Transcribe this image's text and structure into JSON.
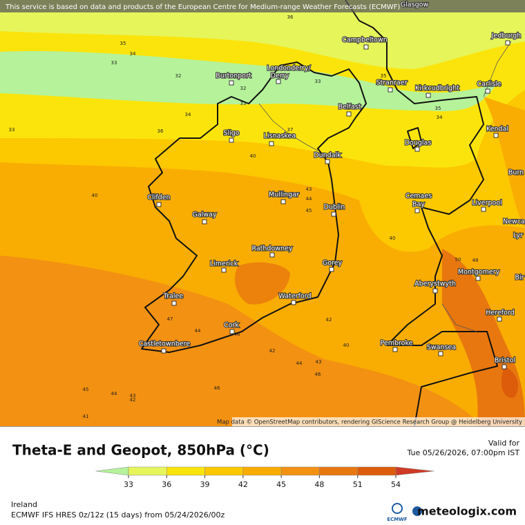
{
  "notice": "This service is based on data and products of the European Centre for Medium-range Weather Forecasts (ECMWF)",
  "attribution": "Map data © OpenStreetMap contributors, rendering GIScience Research Group @ Heidelberg University",
  "cities": [
    {
      "label": "Glasgow"
    },
    {
      "label": "Campbeltown"
    },
    {
      "label": "Jedburgh"
    },
    {
      "label": "Burtonport"
    },
    {
      "label": "Londonderry/"
    },
    {
      "label": "Derry"
    },
    {
      "label": "Stranraer"
    },
    {
      "label": "Kirkcudbright"
    },
    {
      "label": "Carlisle"
    },
    {
      "label": "Belfast"
    },
    {
      "label": "Sligo"
    },
    {
      "label": "Lisnaskea"
    },
    {
      "label": "Douglas"
    },
    {
      "label": "Kendal"
    },
    {
      "label": "Dundalk"
    },
    {
      "label": "Burn"
    },
    {
      "label": "Clifden"
    },
    {
      "label": "Mullingar"
    },
    {
      "label": "Dublin"
    },
    {
      "label": "Cemaes"
    },
    {
      "label": "Bay"
    },
    {
      "label": "Liverpool"
    },
    {
      "label": "Galway"
    },
    {
      "label": "Newca"
    },
    {
      "label": "Lyr"
    },
    {
      "label": "Rathdowney"
    },
    {
      "label": "Limerick"
    },
    {
      "label": "Gorey"
    },
    {
      "label": "Montgomery"
    },
    {
      "label": "Aberystwyth"
    },
    {
      "label": "Bir"
    },
    {
      "label": "Tralee"
    },
    {
      "label": "Waterford"
    },
    {
      "label": "Hereford"
    },
    {
      "label": "Cork"
    },
    {
      "label": "Pembroke"
    },
    {
      "label": "Swansea"
    },
    {
      "label": "Castletownbere"
    },
    {
      "label": "Bristol"
    }
  ],
  "contour_labels": [
    36,
    35,
    34,
    33,
    32,
    32,
    33,
    33,
    34,
    33,
    36,
    37,
    40,
    40,
    43,
    44,
    45,
    40,
    50,
    48,
    42,
    40,
    47,
    44,
    46,
    42,
    44,
    43,
    46,
    45,
    44,
    43,
    42,
    46,
    41,
    35,
    35,
    34
  ],
  "legend": {
    "title": "Theta-E and Geopot, 850hPa (°C)",
    "ticks": [
      33,
      36,
      39,
      42,
      45,
      48,
      51,
      54
    ],
    "colors": [
      "#b5f29a",
      "#e6f55a",
      "#fbe40c",
      "#fcc800",
      "#f9ad02",
      "#f39112",
      "#e8770f",
      "#dc5c0b",
      "#cf3a26"
    ]
  },
  "valid_label": "Valid for",
  "valid_time": "Tue 05/26/2026, 07:00pm IST",
  "region": "Ireland",
  "model_run": "ECMWF IFS HRES 0z/12z (15 days) from 05/24/2026/00z",
  "ecmwf_logo": "ECMWF",
  "brand": "meteologix.com"
}
